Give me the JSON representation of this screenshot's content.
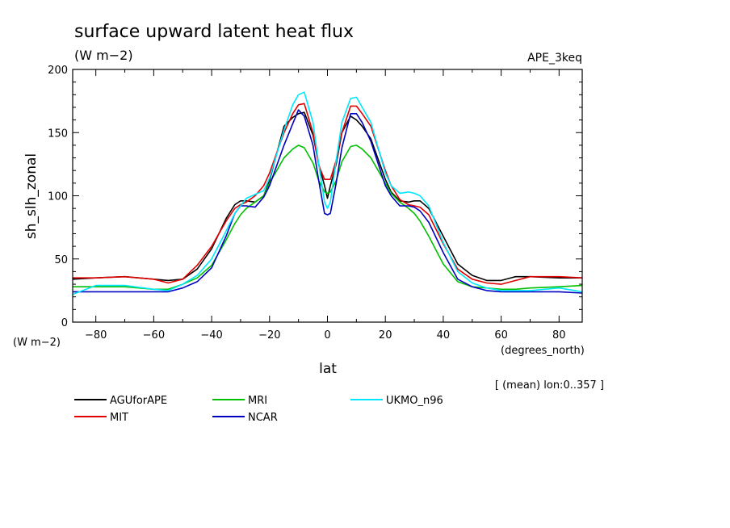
{
  "chart_data": {
    "type": "line",
    "title": "surface upward latent heat flux",
    "units": "(W m−2)",
    "dataset": "APE_3keq",
    "xlabel": "lat",
    "xunits": "(degrees_north)",
    "ylabel": "sh_slh_zonal",
    "yunits": "(W m−2)",
    "note": "[ (mean) lon:0..357 ]",
    "xlim": [
      -88,
      88
    ],
    "ylim": [
      0,
      200
    ],
    "xticks": [
      -80,
      -60,
      -40,
      -20,
      0,
      20,
      40,
      60,
      80
    ],
    "xtick_labels": [
      "−80",
      "−60",
      "−40",
      "−20",
      "0",
      "20",
      "40",
      "60",
      "80"
    ],
    "yticks": [
      0,
      50,
      100,
      150,
      200
    ],
    "ytick_labels": [
      "0",
      "50",
      "100",
      "150",
      "200"
    ],
    "x": [
      -88,
      -80,
      -70,
      -60,
      -55,
      -50,
      -45,
      -40,
      -35,
      -32,
      -30,
      -28,
      -25,
      -22,
      -20,
      -15,
      -12,
      -10,
      -8,
      -5,
      -3,
      -1,
      0,
      1,
      3,
      5,
      8,
      10,
      12,
      15,
      20,
      22,
      25,
      28,
      30,
      32,
      35,
      40,
      45,
      50,
      55,
      60,
      65,
      70,
      80,
      88
    ],
    "series": [
      {
        "name": "AGUforAPE",
        "color": "#000000",
        "values": [
          34,
          35,
          36,
          34,
          33,
          34,
          42,
          58,
          82,
          93,
          96,
          96,
          95,
          100,
          112,
          155,
          162,
          165,
          166,
          148,
          125,
          108,
          98,
          108,
          125,
          150,
          163,
          160,
          155,
          145,
          113,
          103,
          96,
          95,
          96,
          96,
          90,
          68,
          46,
          37,
          33,
          33,
          36,
          36,
          35,
          35
        ]
      },
      {
        "name": "MIT",
        "color": "#e00000",
        "values": [
          35,
          35,
          36,
          34,
          31,
          34,
          45,
          60,
          80,
          90,
          93,
          95,
          100,
          108,
          118,
          150,
          165,
          172,
          173,
          150,
          124,
          113,
          113,
          113,
          128,
          150,
          171,
          171,
          165,
          155,
          120,
          108,
          97,
          93,
          92,
          91,
          85,
          62,
          42,
          34,
          31,
          30,
          33,
          36,
          36,
          35
        ]
      },
      {
        "name": "MRI",
        "color": "#00c000",
        "values": [
          28,
          28,
          28,
          26,
          26,
          30,
          35,
          45,
          65,
          78,
          85,
          90,
          95,
          100,
          110,
          130,
          137,
          140,
          138,
          126,
          112,
          103,
          102,
          103,
          112,
          127,
          139,
          140,
          137,
          130,
          110,
          102,
          95,
          90,
          86,
          80,
          68,
          46,
          32,
          28,
          27,
          26,
          26,
          27,
          28,
          29
        ]
      },
      {
        "name": "NCAR",
        "color": "#0000c0",
        "values": [
          24,
          24,
          24,
          24,
          24,
          27,
          32,
          43,
          68,
          86,
          92,
          92,
          91,
          99,
          108,
          140,
          157,
          168,
          163,
          140,
          112,
          86,
          85,
          86,
          110,
          138,
          165,
          165,
          158,
          143,
          108,
          100,
          92,
          92,
          91,
          88,
          79,
          55,
          34,
          28,
          25,
          24,
          24,
          24,
          24,
          23
        ]
      },
      {
        "name": "UKMO_n96",
        "color": "#00e8ff",
        "values": [
          22,
          29,
          29,
          26,
          25,
          30,
          37,
          50,
          72,
          86,
          92,
          98,
          101,
          104,
          114,
          152,
          172,
          180,
          182,
          158,
          125,
          95,
          90,
          95,
          128,
          158,
          177,
          178,
          170,
          158,
          118,
          108,
          102,
          103,
          102,
          100,
          92,
          63,
          40,
          31,
          27,
          25,
          25,
          25,
          27,
          24
        ]
      }
    ]
  }
}
